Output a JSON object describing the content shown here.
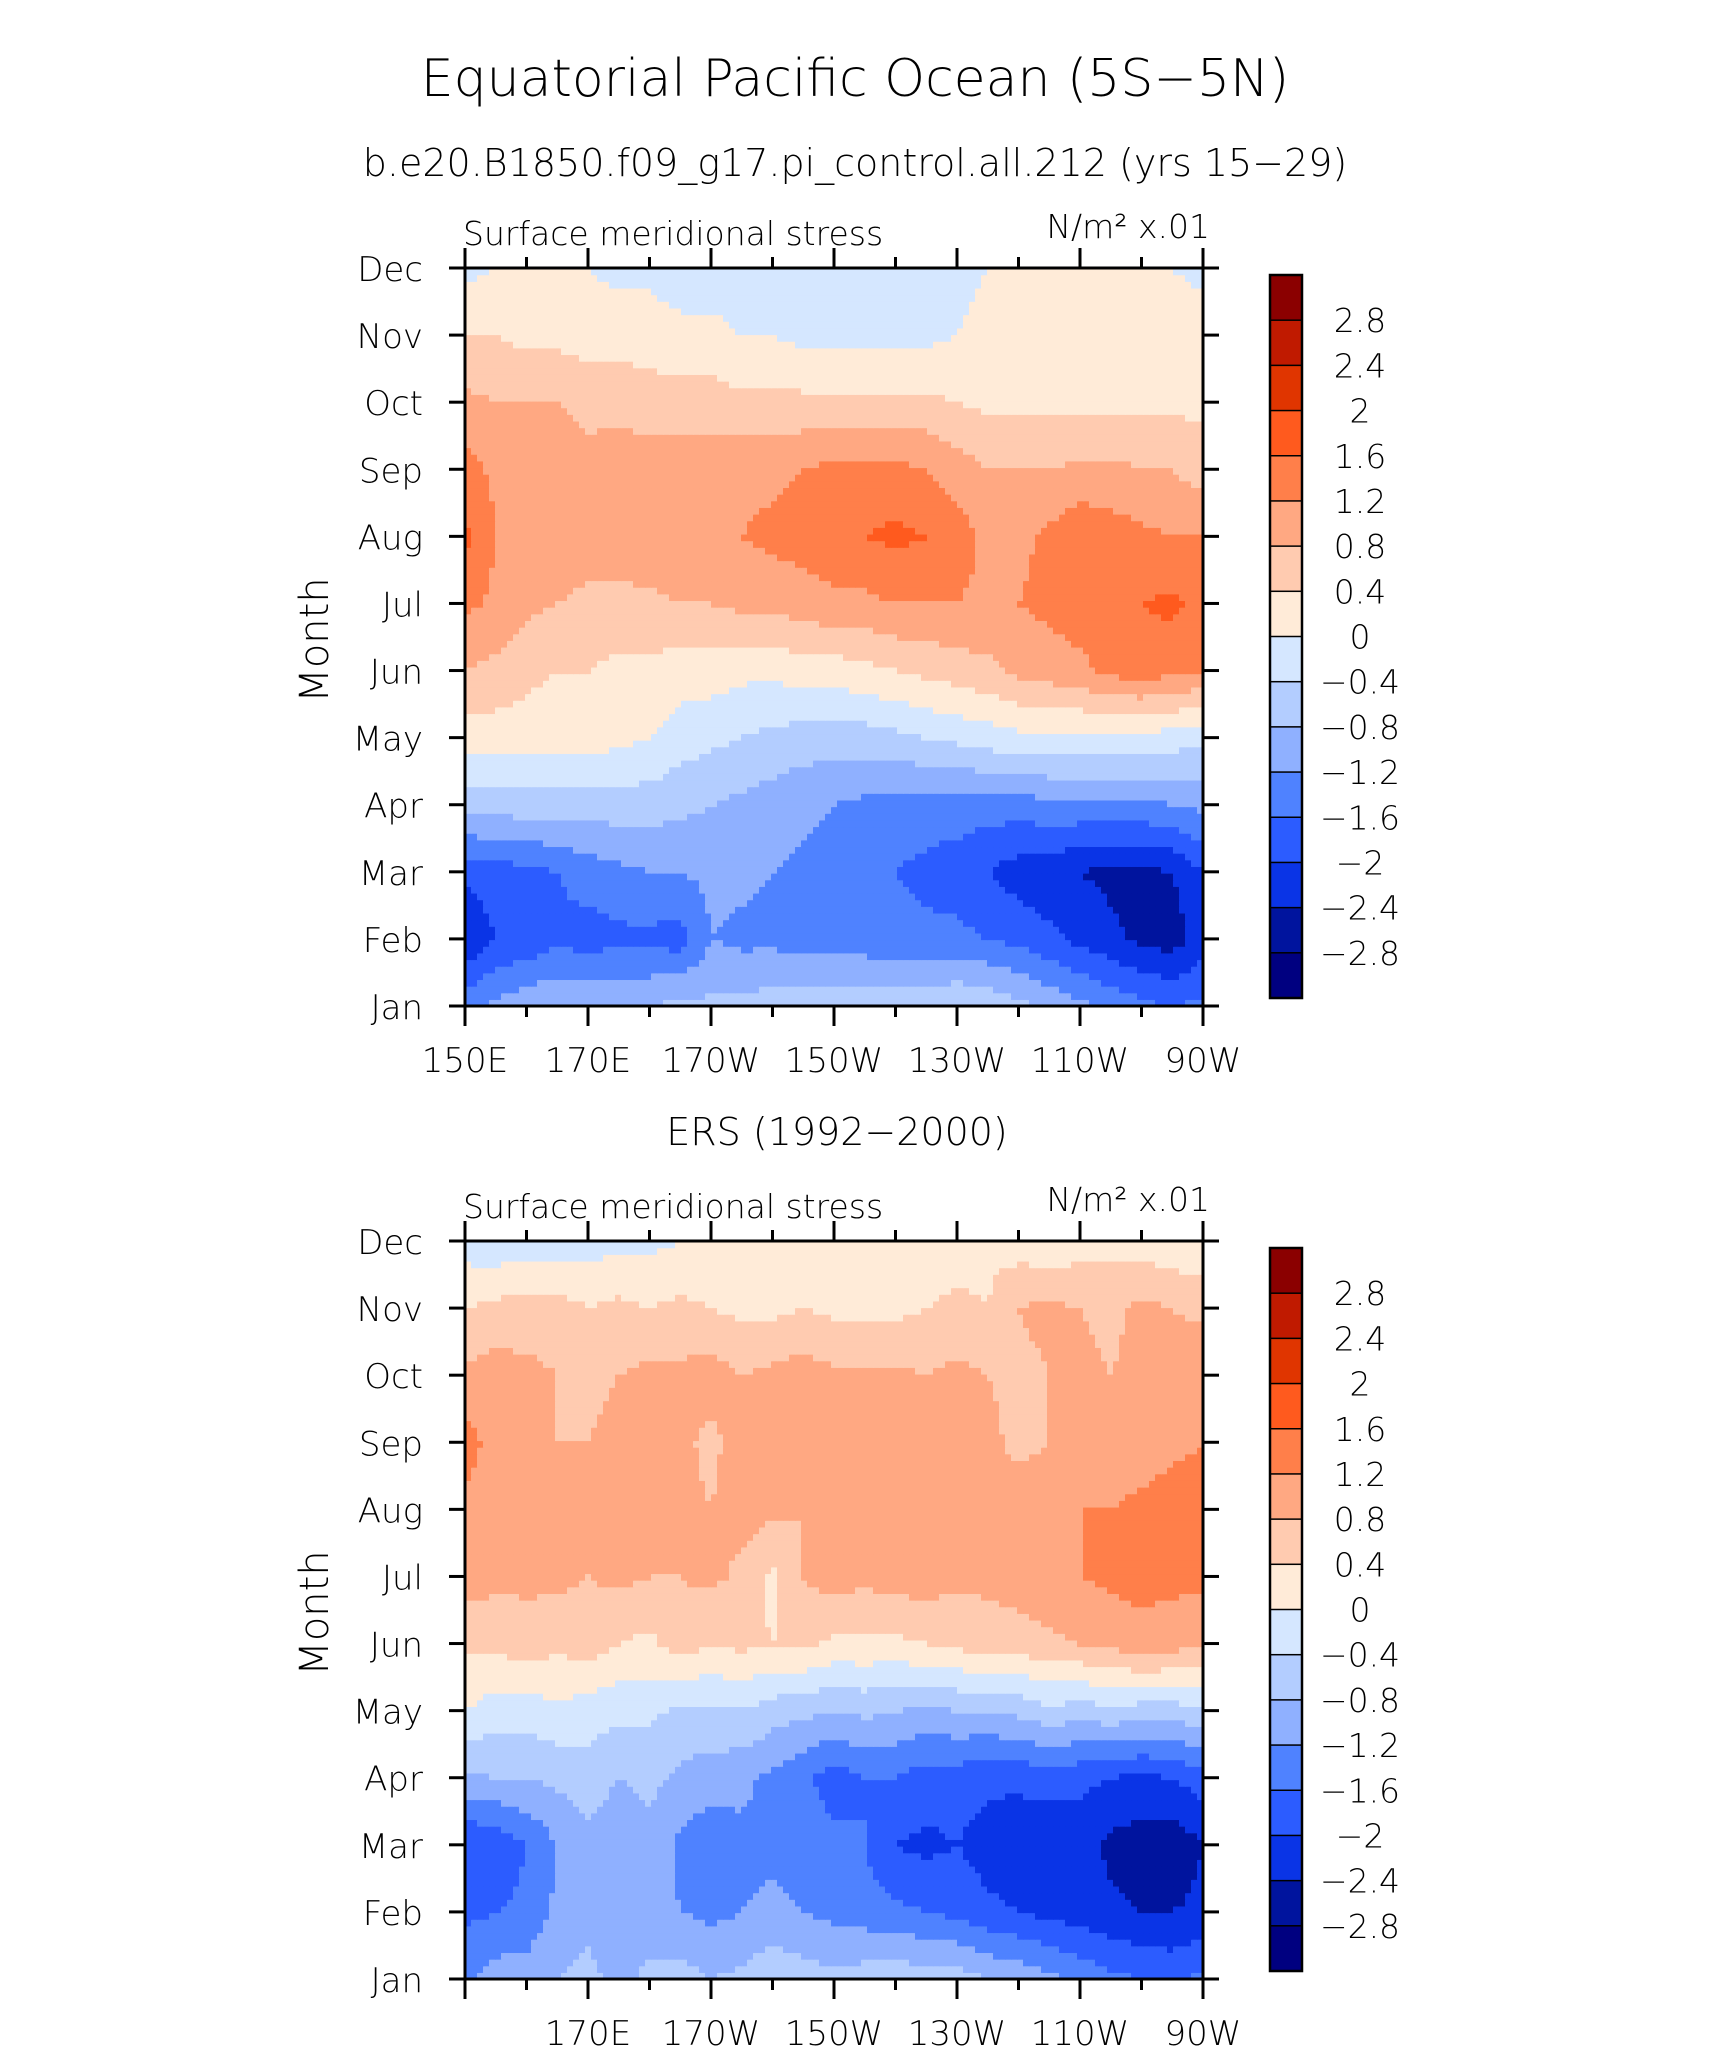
{
  "chart_data": {
    "type": "heatmap",
    "title": "Equatorial Pacific Ocean (5S−5N)",
    "subtitle": "b.e20.B1850.f09_g17.pi_control.all.212 (yrs 15−29)",
    "colorbar": {
      "labels": [
        "2.8",
        "2.4",
        "2",
        "1.6",
        "1.2",
        "0.8",
        "0.4",
        "0",
        "−0.4",
        "−0.8",
        "−1.2",
        "−1.6",
        "−2",
        "−2.4",
        "−2.8"
      ],
      "levels": [
        2.8,
        2.4,
        2.0,
        1.6,
        1.2,
        0.8,
        0.4,
        0,
        -0.4,
        -0.8,
        -1.2,
        -1.6,
        -2.0,
        -2.4,
        -2.8
      ],
      "colors": [
        "#8b0000",
        "#c01a00",
        "#e03500",
        "#ff5a1e",
        "#ff7f4a",
        "#ffa882",
        "#ffcbb0",
        "#ffebd8",
        "#d5e7ff",
        "#b3cdff",
        "#8fb0ff",
        "#4f82ff",
        "#2c5cff",
        "#0a34e6",
        "#00149e",
        "#000080"
      ]
    },
    "panels": [
      {
        "name": "model",
        "title": "",
        "left_label": "Surface meridional stress",
        "units_label": "N/m² x.01",
        "ylabel": "Month",
        "yticks": [
          "Dec",
          "Nov",
          "Oct",
          "Sep",
          "Aug",
          "Jul",
          "Jun",
          "May",
          "Apr",
          "Mar",
          "Feb",
          "Jan"
        ],
        "xticks": [
          "150E",
          "170E",
          "170W",
          "150W",
          "130W",
          "110W",
          "90W"
        ],
        "xlim": [
          150,
          270
        ],
        "x": [
          150,
          155,
          160,
          165,
          170,
          175,
          180,
          185,
          190,
          195,
          200,
          205,
          210,
          215,
          220,
          225,
          230,
          235,
          240,
          245,
          250,
          255,
          260,
          265,
          270
        ],
        "months": [
          "Jan",
          "Feb",
          "Mar",
          "Apr",
          "May",
          "Jun",
          "Jul",
          "Aug",
          "Sep",
          "Oct",
          "Nov",
          "Dec"
        ],
        "values": [
          [
            -1.3,
            -1.1,
            -0.9,
            -0.8,
            -0.8,
            -0.8,
            -0.8,
            -0.7,
            -0.7,
            -0.7,
            -0.6,
            -0.6,
            -0.6,
            -0.6,
            -0.5,
            -0.5,
            -0.4,
            -0.5,
            -0.7,
            -0.9,
            -1.1,
            -1.3,
            -1.5,
            -1.6,
            -1.5
          ],
          [
            -2.4,
            -2.0,
            -1.9,
            -1.7,
            -1.8,
            -1.7,
            -1.7,
            -1.8,
            -1.2,
            -1.3,
            -1.3,
            -1.4,
            -1.4,
            -1.4,
            -1.5,
            -1.5,
            -1.5,
            -1.6,
            -1.7,
            -1.9,
            -2.1,
            -2.3,
            -2.5,
            -2.6,
            -2.2
          ],
          [
            -1.9,
            -1.8,
            -1.7,
            -1.6,
            -1.4,
            -1.3,
            -1.2,
            -1.2,
            -1.1,
            -1.1,
            -1.2,
            -1.3,
            -1.4,
            -1.5,
            -1.6,
            -1.7,
            -1.8,
            -2.0,
            -2.2,
            -2.3,
            -2.4,
            -2.5,
            -2.5,
            -2.4,
            -2.0
          ],
          [
            -0.6,
            -0.6,
            -0.6,
            -0.6,
            -0.6,
            -0.6,
            -0.6,
            -0.7,
            -0.8,
            -0.9,
            -1.0,
            -1.1,
            -1.2,
            -1.3,
            -1.4,
            -1.4,
            -1.4,
            -1.4,
            -1.4,
            -1.3,
            -1.3,
            -1.3,
            -1.3,
            -1.2,
            -1.1
          ],
          [
            0.2,
            0.2,
            0.2,
            0.2,
            0.2,
            0.1,
            0.0,
            -0.2,
            -0.3,
            -0.4,
            -0.5,
            -0.6,
            -0.6,
            -0.6,
            -0.5,
            -0.4,
            -0.3,
            -0.2,
            -0.1,
            -0.1,
            -0.1,
            -0.1,
            -0.1,
            -0.2,
            -0.3
          ],
          [
            0.8,
            0.7,
            0.5,
            0.4,
            0.4,
            0.3,
            0.3,
            0.2,
            0.2,
            0.1,
            0.1,
            0.2,
            0.2,
            0.3,
            0.4,
            0.5,
            0.6,
            0.7,
            0.9,
            1.0,
            1.1,
            1.3,
            1.4,
            1.3,
            1.2
          ],
          [
            1.3,
            1.1,
            0.9,
            0.8,
            0.7,
            0.7,
            0.7,
            0.8,
            0.8,
            0.9,
            0.9,
            1.0,
            1.1,
            1.1,
            1.2,
            1.2,
            1.2,
            1.1,
            1.2,
            1.3,
            1.4,
            1.5,
            1.6,
            1.7,
            1.4
          ],
          [
            1.7,
            1.2,
            1.1,
            1.1,
            1.0,
            1.0,
            1.1,
            1.1,
            1.2,
            1.2,
            1.3,
            1.4,
            1.5,
            1.6,
            1.7,
            1.6,
            1.4,
            1.1,
            1.1,
            1.3,
            1.5,
            1.4,
            1.3,
            1.2,
            1.2
          ],
          [
            1.4,
            1.1,
            1.0,
            1.0,
            0.9,
            1.0,
            1.0,
            1.0,
            1.0,
            1.1,
            1.1,
            1.2,
            1.3,
            1.3,
            1.3,
            1.2,
            1.0,
            0.8,
            0.8,
            0.8,
            0.9,
            0.9,
            0.8,
            0.8,
            0.6
          ],
          [
            0.9,
            0.8,
            0.8,
            0.8,
            0.7,
            0.7,
            0.6,
            0.6,
            0.6,
            0.5,
            0.5,
            0.5,
            0.5,
            0.5,
            0.5,
            0.5,
            0.4,
            0.3,
            0.3,
            0.3,
            0.3,
            0.3,
            0.3,
            0.3,
            0.3
          ],
          [
            0.4,
            0.4,
            0.3,
            0.3,
            0.2,
            0.2,
            0.2,
            0.1,
            0.1,
            0.0,
            0.0,
            -0.1,
            -0.1,
            -0.1,
            -0.1,
            -0.1,
            0.0,
            0.1,
            0.2,
            0.2,
            0.2,
            0.2,
            0.2,
            0.2,
            0.2
          ],
          [
            -0.1,
            0.0,
            0.0,
            0.0,
            0.0,
            -0.1,
            -0.1,
            -0.2,
            -0.2,
            -0.2,
            -0.3,
            -0.3,
            -0.3,
            -0.3,
            -0.2,
            -0.2,
            -0.1,
            0.0,
            0.1,
            0.1,
            0.1,
            0.1,
            0.1,
            0.0,
            -0.1
          ]
        ]
      },
      {
        "name": "ers",
        "title": "ERS (1992−2000)",
        "left_label": "Surface meridional stress",
        "units_label": "N/m² x.01",
        "ylabel": "Month",
        "yticks": [
          "Dec",
          "Nov",
          "Oct",
          "Sep",
          "Aug",
          "Jul",
          "Jun",
          "May",
          "Apr",
          "Mar",
          "Feb",
          "Jan"
        ],
        "xticks": [
          "170E",
          "170W",
          "150W",
          "130W",
          "110W",
          "90W"
        ],
        "xlim": [
          150,
          270
        ],
        "x": [
          150,
          155,
          160,
          165,
          170,
          175,
          180,
          185,
          190,
          195,
          200,
          205,
          210,
          215,
          220,
          225,
          230,
          235,
          240,
          245,
          250,
          255,
          260,
          265,
          270
        ],
        "months": [
          "Jan",
          "Feb",
          "Mar",
          "Apr",
          "May",
          "Jun",
          "Jul",
          "Aug",
          "Sep",
          "Oct",
          "Nov",
          "Dec"
        ],
        "values": [
          [
            -1.3,
            -1.0,
            -1.0,
            -0.8,
            -0.7,
            -0.9,
            -0.7,
            -0.6,
            -0.8,
            -0.7,
            -0.5,
            -0.6,
            -0.7,
            -0.6,
            -0.5,
            -0.6,
            -0.6,
            -0.8,
            -0.9,
            -1.1,
            -1.3,
            -1.5,
            -1.6,
            -1.7,
            -1.5
          ],
          [
            -1.7,
            -1.6,
            -1.5,
            -1.1,
            -0.9,
            -1.2,
            -1.0,
            -1.2,
            -1.3,
            -1.2,
            -1.1,
            -1.2,
            -1.3,
            -1.4,
            -1.5,
            -1.6,
            -1.7,
            -1.9,
            -2.0,
            -2.1,
            -2.2,
            -2.3,
            -2.4,
            -2.4,
            -2.3
          ],
          [
            -2.0,
            -1.9,
            -1.6,
            -1.2,
            -0.9,
            -1.1,
            -0.9,
            -1.3,
            -1.5,
            -1.3,
            -1.3,
            -1.4,
            -1.5,
            -1.6,
            -2.0,
            -2.1,
            -2.0,
            -2.2,
            -2.3,
            -2.4,
            -2.2,
            -2.5,
            -2.6,
            -2.7,
            -2.4
          ],
          [
            -0.9,
            -0.8,
            -0.8,
            -0.7,
            -0.6,
            -0.8,
            -0.7,
            -0.9,
            -1.0,
            -1.1,
            -1.3,
            -1.5,
            -1.8,
            -1.6,
            -1.6,
            -1.8,
            -1.8,
            -1.9,
            -1.9,
            -1.8,
            -1.9,
            -2.0,
            -2.1,
            -2.0,
            -1.8
          ],
          [
            0.0,
            -0.2,
            -0.2,
            -0.1,
            -0.2,
            -0.3,
            -0.3,
            -0.5,
            -0.5,
            -0.4,
            -0.6,
            -0.7,
            -0.8,
            -0.7,
            -0.8,
            -0.9,
            -0.8,
            -0.8,
            -0.7,
            -0.5,
            -0.6,
            -0.5,
            -0.6,
            -0.6,
            -0.5
          ],
          [
            0.5,
            0.5,
            0.6,
            0.5,
            0.6,
            0.4,
            0.3,
            0.6,
            0.4,
            0.5,
            0.4,
            0.5,
            0.3,
            0.3,
            0.3,
            0.4,
            0.5,
            0.6,
            0.6,
            0.7,
            0.8,
            0.9,
            1.1,
            1.0,
            0.8
          ],
          [
            1.0,
            0.9,
            0.9,
            0.9,
            0.8,
            0.9,
            0.8,
            0.8,
            0.9,
            0.7,
            0.3,
            0.8,
            1.0,
            0.9,
            1.0,
            1.0,
            0.9,
            0.9,
            1.0,
            1.1,
            1.2,
            1.3,
            1.3,
            1.3,
            1.3
          ],
          [
            1.1,
            1.0,
            1.1,
            0.8,
            0.9,
            0.8,
            1.0,
            0.9,
            0.8,
            1.0,
            0.9,
            0.8,
            1.0,
            1.0,
            1.1,
            1.0,
            1.1,
            1.0,
            1.0,
            1.1,
            1.2,
            1.2,
            1.3,
            1.4,
            1.4
          ],
          [
            1.4,
            1.0,
            1.1,
            0.8,
            0.8,
            0.9,
            0.9,
            0.9,
            0.7,
            1.0,
            1.1,
            0.9,
            1.0,
            0.9,
            1.0,
            1.1,
            1.0,
            0.9,
            0.7,
            0.8,
            0.9,
            0.9,
            1.0,
            1.1,
            1.2
          ],
          [
            0.9,
            1.0,
            0.9,
            0.8,
            0.7,
            0.8,
            0.9,
            0.9,
            1.0,
            0.8,
            0.9,
            1.0,
            0.9,
            0.9,
            0.9,
            0.8,
            0.9,
            0.8,
            0.7,
            0.8,
            0.9,
            0.8,
            0.9,
            1.0,
            1.2
          ],
          [
            0.4,
            0.5,
            0.6,
            0.6,
            0.4,
            0.5,
            0.4,
            0.5,
            0.4,
            0.3,
            0.3,
            0.4,
            0.3,
            0.3,
            0.3,
            0.4,
            0.5,
            0.4,
            0.8,
            0.9,
            0.8,
            0.7,
            0.9,
            0.8,
            0.7
          ],
          [
            -0.2,
            -0.3,
            -0.2,
            -0.3,
            -0.2,
            -0.1,
            -0.1,
            0.0,
            0.1,
            0.1,
            0.1,
            0.0,
            0.1,
            0.2,
            0.2,
            0.1,
            0.2,
            0.3,
            0.2,
            0.1,
            0.2,
            0.3,
            0.2,
            0.1,
            0.1
          ]
        ]
      }
    ]
  }
}
